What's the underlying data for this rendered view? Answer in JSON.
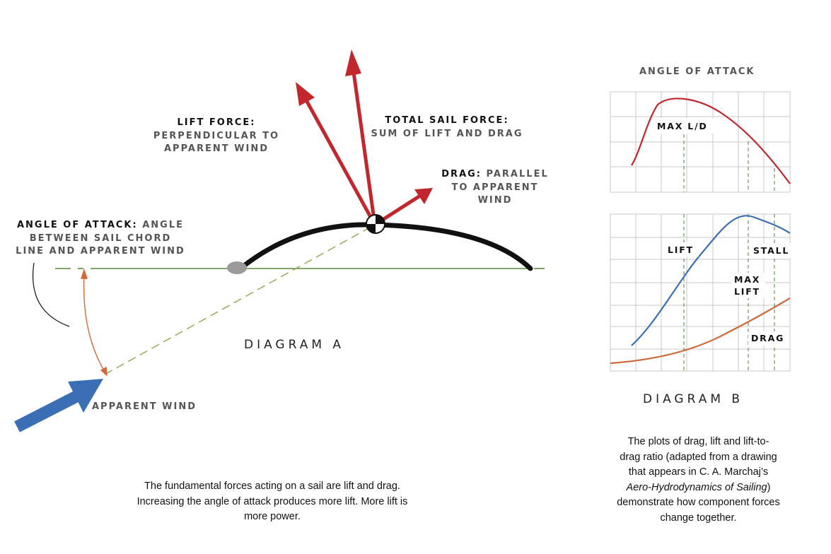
{
  "diagram_a": {
    "title": "DIAGRAM A",
    "lift_force": {
      "key": "LIFT FORCE:",
      "line1": "PERPENDICULAR TO",
      "line2": "APPARENT WIND"
    },
    "total_sail_force": {
      "key": "TOTAL SAIL FORCE:",
      "value": "SUM OF LIFT AND DRAG"
    },
    "drag": {
      "key": "DRAG:",
      "value_a": "PARALLEL",
      "line2": "TO APPARENT",
      "line3": "WIND"
    },
    "angle_of_attack": {
      "key": "ANGLE OF ATTACK:",
      "value_a": "ANGLE",
      "line2": "BETWEEN SAIL CHORD",
      "line3": "LINE AND APPARENT WIND"
    },
    "apparent_wind": "APPARENT WIND",
    "caption": {
      "line1": "The fundamental forces acting on a sail are lift and drag.",
      "line2": "Increasing the angle of attack produces more lift. More lift is",
      "line3": "more power."
    },
    "colors": {
      "lift": "#c1272d",
      "wind": "#3a6fb5",
      "chord": "#5a8a3a",
      "angle": "#d06a3a",
      "sail": "#111111"
    }
  },
  "diagram_b": {
    "header": "ANGLE OF ATTACK",
    "title": "DIAGRAM B",
    "top_plot": {
      "label": "MAX L/D"
    },
    "bottom_plot": {
      "lift": "LIFT",
      "stall": "STALL",
      "max_line1": "MAX",
      "max_line2": "LIFT",
      "drag": "DRAG"
    },
    "caption": {
      "line1": "The plots of drag, lift and lift-to-",
      "line2": "drag ratio (adapted from a drawing",
      "line3": "that appears in C. A. Marchaj’s",
      "line4_italic": "Aero-Hydrodynamics of Sailing",
      "line4_end": ")",
      "line5": "demonstrate how component forces",
      "line6": "change together."
    },
    "colors": {
      "ld": "#c1272d",
      "lift": "#3a6fb5",
      "drag": "#d06a3a",
      "grid": "#c8c8c8"
    }
  }
}
